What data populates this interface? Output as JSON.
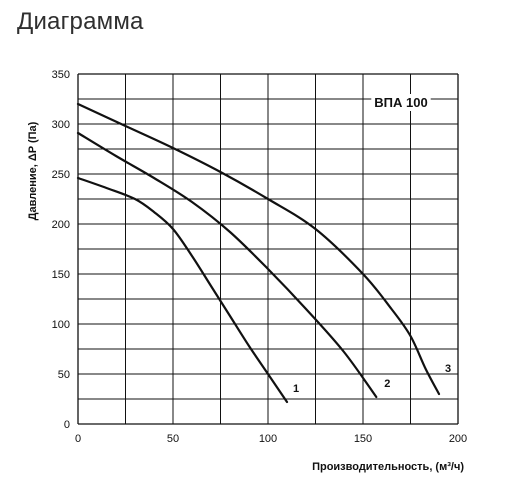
{
  "page": {
    "heading": "Диаграмма"
  },
  "chart_data": {
    "type": "line",
    "title": "",
    "model_label": "ВПА 100",
    "xlabel": "Производительность, (м³/ч)",
    "ylabel": "Давление, ΔP (Па)",
    "xlim": [
      0,
      200
    ],
    "ylim": [
      0,
      350
    ],
    "x_ticks": [
      0,
      50,
      100,
      150,
      200
    ],
    "y_ticks": [
      0,
      50,
      100,
      150,
      200,
      250,
      300,
      350
    ],
    "grid": true,
    "series": [
      {
        "name": "1",
        "color": "#111111",
        "points": [
          [
            0,
            246
          ],
          [
            15,
            236
          ],
          [
            30,
            225
          ],
          [
            40,
            212
          ],
          [
            50,
            195
          ],
          [
            60,
            168
          ],
          [
            70,
            138
          ],
          [
            80,
            108
          ],
          [
            90,
            78
          ],
          [
            100,
            50
          ],
          [
            110,
            22
          ]
        ]
      },
      {
        "name": "2",
        "color": "#111111",
        "points": [
          [
            0,
            291
          ],
          [
            20,
            268
          ],
          [
            40,
            246
          ],
          [
            60,
            222
          ],
          [
            80,
            192
          ],
          [
            100,
            155
          ],
          [
            120,
            115
          ],
          [
            140,
            72
          ],
          [
            157,
            27
          ]
        ]
      },
      {
        "name": "3",
        "color": "#111111",
        "points": [
          [
            0,
            320
          ],
          [
            25,
            298
          ],
          [
            50,
            276
          ],
          [
            75,
            252
          ],
          [
            100,
            225
          ],
          [
            125,
            195
          ],
          [
            150,
            150
          ],
          [
            165,
            115
          ],
          [
            175,
            88
          ],
          [
            183,
            55
          ],
          [
            190,
            30
          ]
        ]
      }
    ]
  }
}
